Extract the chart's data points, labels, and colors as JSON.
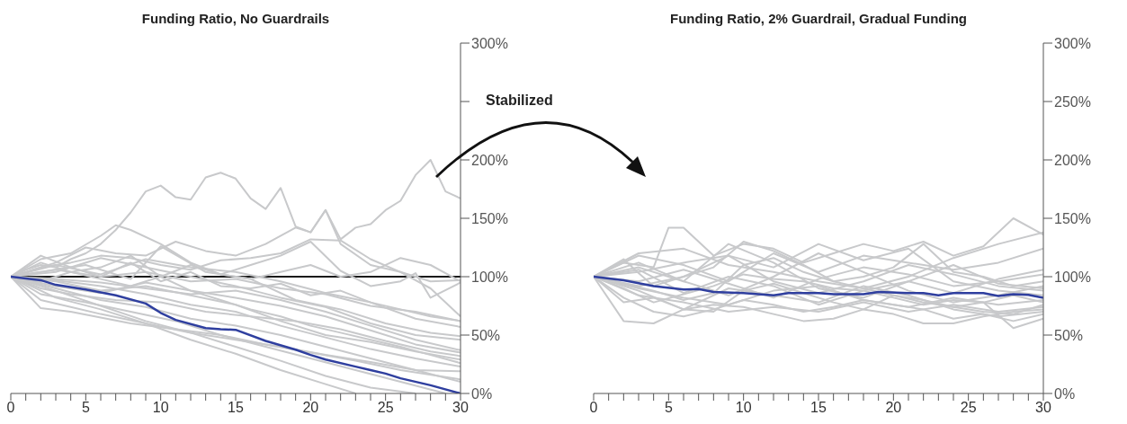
{
  "chart_data": [
    {
      "type": "line",
      "title": "Funding Ratio, No Guardrails",
      "xlim": [
        0,
        30
      ],
      "xticks": [
        0,
        {
          "value": 1,
          "label": null
        },
        {
          "value": 2,
          "label": null
        },
        {
          "value": 3,
          "label": null
        },
        {
          "value": 4,
          "label": null
        },
        5,
        {
          "value": 6,
          "label": null
        },
        {
          "value": 7,
          "label": null
        },
        {
          "value": 8,
          "label": null
        },
        {
          "value": 9,
          "label": null
        },
        10,
        {
          "value": 11,
          "label": null
        },
        {
          "value": 12,
          "label": null
        },
        {
          "value": 13,
          "label": null
        },
        {
          "value": 14,
          "label": null
        },
        15,
        {
          "value": 16,
          "label": null
        },
        {
          "value": 17,
          "label": null
        },
        {
          "value": 18,
          "label": null
        },
        {
          "value": 19,
          "label": null
        },
        20,
        {
          "value": 21,
          "label": null
        },
        {
          "value": 22,
          "label": null
        },
        {
          "value": 23,
          "label": null
        },
        {
          "value": 24,
          "label": null
        },
        25,
        {
          "value": 26,
          "label": null
        },
        {
          "value": 27,
          "label": null
        },
        {
          "value": 28,
          "label": null
        },
        {
          "value": 29,
          "label": null
        },
        30
      ],
      "ylim": [
        0,
        300
      ],
      "yticks": [
        {
          "value": 0,
          "label": "0%"
        },
        {
          "value": 50,
          "label": "50%"
        },
        {
          "value": 100,
          "label": "100%"
        },
        {
          "value": 150,
          "label": "150%"
        },
        {
          "value": 200,
          "label": "200%"
        },
        {
          "value": 250,
          "label": null
        },
        {
          "value": 300,
          "label": "300%"
        }
      ],
      "ref_lines": [
        {
          "axis": "y",
          "value": 100,
          "color": "#1a1a1a"
        }
      ],
      "annotations": [
        "Stabilized"
      ],
      "series": [
        {
          "color": "#c8c9cb",
          "x": [
            0,
            1,
            2,
            3,
            4,
            5,
            6,
            7,
            8,
            9,
            10,
            11,
            12,
            13,
            14,
            15,
            16,
            17,
            18,
            19,
            20,
            21,
            22,
            23,
            24,
            25,
            26,
            27,
            28,
            29,
            30
          ],
          "values": [
            100,
            106,
            110,
            108,
            115,
            120,
            128,
            140,
            155,
            173,
            178,
            168,
            166,
            185,
            189,
            184,
            167,
            158,
            176,
            143,
            138,
            157,
            132,
            142,
            145,
            157,
            165,
            187,
            200,
            173,
            167
          ]
        },
        {
          "color": "#c8c9cb",
          "x": [
            0,
            3,
            5,
            7,
            9,
            11,
            13,
            15,
            17,
            19,
            20,
            21,
            22,
            24,
            26,
            28,
            30
          ],
          "values": [
            100,
            112,
            125,
            120,
            118,
            130,
            122,
            118,
            128,
            142,
            138,
            157,
            128,
            110,
            104,
            96,
            97
          ]
        },
        {
          "color": "#c8c9cb",
          "x": [
            0,
            2,
            4,
            6,
            7,
            8,
            10,
            12,
            14,
            16,
            18,
            20,
            22,
            24,
            26,
            27,
            28,
            30
          ],
          "values": [
            100,
            115,
            120,
            135,
            144,
            140,
            128,
            112,
            102,
            110,
            118,
            130,
            105,
            92,
            96,
            103,
            82,
            95
          ]
        },
        {
          "color": "#c8c9cb",
          "x": [
            0,
            2,
            4,
            6,
            8,
            10,
            12,
            14,
            16,
            18,
            20,
            22,
            24,
            26,
            28,
            30
          ],
          "values": [
            100,
            108,
            112,
            118,
            116,
            110,
            106,
            114,
            116,
            120,
            132,
            131,
            115,
            104,
            90,
            66
          ]
        },
        {
          "color": "#c8c9cb",
          "x": [
            0,
            3,
            6,
            9,
            12,
            15,
            18,
            21,
            24,
            27,
            30
          ],
          "values": [
            100,
            106,
            100,
            104,
            96,
            98,
            90,
            85,
            75,
            70,
            62
          ]
        },
        {
          "color": "#c8c9cb",
          "x": [
            0,
            2,
            5,
            8,
            10,
            13,
            16,
            19,
            22,
            25,
            28,
            30
          ],
          "values": [
            100,
            104,
            110,
            98,
            126,
            104,
            98,
            80,
            72,
            60,
            52,
            49
          ]
        },
        {
          "color": "#c8c9cb",
          "x": [
            0,
            3,
            6,
            9,
            12,
            15,
            18,
            21,
            24,
            27,
            30
          ],
          "values": [
            100,
            98,
            95,
            90,
            85,
            88,
            80,
            70,
            58,
            46,
            37
          ]
        },
        {
          "color": "#c8c9cb",
          "x": [
            0,
            2,
            4,
            7,
            10,
            13,
            16,
            19,
            22,
            25,
            28,
            30
          ],
          "values": [
            100,
            90,
            85,
            80,
            78,
            70,
            66,
            62,
            55,
            45,
            36,
            32
          ]
        },
        {
          "color": "#c8c9cb",
          "x": [
            0,
            3,
            6,
            9,
            12,
            15,
            18,
            21,
            24,
            27,
            30
          ],
          "values": [
            100,
            96,
            88,
            92,
            84,
            76,
            62,
            50,
            44,
            36,
            29
          ]
        },
        {
          "color": "#c8c9cb",
          "x": [
            0,
            2,
            4,
            6,
            9,
            12,
            15,
            18,
            21,
            24,
            27,
            30
          ],
          "values": [
            100,
            80,
            74,
            68,
            60,
            52,
            46,
            40,
            33,
            27,
            20,
            19
          ]
        },
        {
          "color": "#c8c9cb",
          "x": [
            0,
            2,
            4,
            6,
            8,
            11,
            14,
            17,
            20,
            23,
            26,
            30
          ],
          "values": [
            100,
            73,
            70,
            65,
            60,
            55,
            50,
            42,
            35,
            28,
            20,
            12
          ]
        },
        {
          "color": "#c8c9cb",
          "x": [
            0,
            2,
            5,
            8,
            11,
            14,
            17,
            20,
            23,
            26,
            29
          ],
          "values": [
            100,
            85,
            78,
            70,
            62,
            50,
            40,
            30,
            20,
            10,
            0
          ]
        },
        {
          "color": "#c8c9cb",
          "x": [
            0,
            3,
            6,
            9,
            12,
            15,
            18,
            21,
            24,
            27
          ],
          "values": [
            100,
            88,
            75,
            62,
            52,
            40,
            28,
            15,
            5,
            0
          ]
        },
        {
          "color": "#c8c9cb",
          "x": [
            0,
            3,
            6,
            9,
            12,
            15,
            18,
            21,
            23
          ],
          "values": [
            100,
            82,
            72,
            60,
            46,
            34,
            20,
            8,
            0
          ]
        },
        {
          "color": "#c8c9cb",
          "x": [
            0,
            2,
            4,
            6,
            8,
            10,
            12,
            14,
            16,
            18,
            20,
            22,
            24,
            26,
            28,
            30
          ],
          "values": [
            100,
            112,
            104,
            108,
            118,
            100,
            110,
            102,
            98,
            104,
            110,
            100,
            104,
            116,
            110,
            96
          ]
        },
        {
          "color": "#c8c9cb",
          "x": [
            0,
            2,
            4,
            6,
            8,
            10,
            12,
            14,
            16,
            18,
            20,
            22,
            24,
            26,
            28,
            30
          ],
          "values": [
            100,
            118,
            108,
            100,
            112,
            96,
            104,
            92,
            90,
            94,
            84,
            88,
            78,
            72,
            66,
            62
          ]
        },
        {
          "color": "#c8c9cb",
          "x": [
            0,
            3,
            6,
            9,
            12,
            15,
            18,
            21,
            24,
            27,
            30
          ],
          "values": [
            100,
            110,
            102,
            115,
            108,
            104,
            96,
            86,
            78,
            64,
            57
          ]
        },
        {
          "color": "#c8c9cb",
          "x": [
            0,
            3,
            6,
            9,
            12,
            15,
            18,
            21,
            24,
            27,
            30
          ],
          "values": [
            100,
            92,
            86,
            95,
            88,
            82,
            75,
            66,
            54,
            42,
            35
          ]
        },
        {
          "color": "#c8c9cb",
          "x": [
            0,
            2,
            4,
            6,
            8,
            10,
            12,
            14,
            16,
            18,
            20,
            22,
            24,
            26,
            28,
            30
          ],
          "values": [
            100,
            96,
            104,
            98,
            92,
            100,
            88,
            80,
            72,
            66,
            58,
            52,
            46,
            40,
            33,
            26
          ]
        },
        {
          "color": "#c8c9cb",
          "x": [
            0,
            3,
            6,
            9,
            12,
            15,
            18,
            21,
            24,
            27,
            30
          ],
          "values": [
            100,
            90,
            80,
            74,
            64,
            58,
            50,
            40,
            30,
            20,
            10
          ]
        },
        {
          "color": "#c8c9cb",
          "x": [
            0,
            3,
            6,
            9,
            12,
            15,
            18,
            21,
            24,
            27,
            30
          ],
          "values": [
            100,
            104,
            116,
            108,
            100,
            92,
            82,
            74,
            60,
            50,
            46
          ]
        },
        {
          "color": "#c8c9cb",
          "x": [
            0,
            3,
            6,
            9,
            12,
            15,
            18,
            21,
            24,
            27,
            30
          ],
          "values": [
            100,
            97,
            92,
            85,
            76,
            70,
            58,
            48,
            38,
            30,
            23
          ]
        },
        {
          "color": "#2f3f9f",
          "x": [
            0,
            2,
            3,
            5,
            7,
            9,
            10,
            11,
            13,
            14,
            15,
            17,
            19,
            20,
            21,
            23,
            24,
            25,
            26,
            28,
            30
          ],
          "values": [
            100,
            97,
            93,
            89,
            84,
            77,
            69,
            63,
            56,
            55,
            54.5,
            45,
            37.5,
            33,
            29,
            23,
            20,
            17,
            13,
            7,
            0
          ]
        }
      ]
    },
    {
      "type": "line",
      "title": "Funding Ratio, 2% Guardrail, Gradual Funding",
      "xlim": [
        0,
        30
      ],
      "xticks": [
        0,
        {
          "value": 1,
          "label": null
        },
        {
          "value": 2,
          "label": null
        },
        {
          "value": 3,
          "label": null
        },
        {
          "value": 4,
          "label": null
        },
        5,
        {
          "value": 6,
          "label": null
        },
        {
          "value": 7,
          "label": null
        },
        {
          "value": 8,
          "label": null
        },
        {
          "value": 9,
          "label": null
        },
        10,
        {
          "value": 11,
          "label": null
        },
        {
          "value": 12,
          "label": null
        },
        {
          "value": 13,
          "label": null
        },
        {
          "value": 14,
          "label": null
        },
        15,
        {
          "value": 16,
          "label": null
        },
        {
          "value": 17,
          "label": null
        },
        {
          "value": 18,
          "label": null
        },
        {
          "value": 19,
          "label": null
        },
        20,
        {
          "value": 21,
          "label": null
        },
        {
          "value": 22,
          "label": null
        },
        {
          "value": 23,
          "label": null
        },
        {
          "value": 24,
          "label": null
        },
        25,
        {
          "value": 26,
          "label": null
        },
        {
          "value": 27,
          "label": null
        },
        {
          "value": 28,
          "label": null
        },
        {
          "value": 29,
          "label": null
        },
        30
      ],
      "ylim": [
        0,
        300
      ],
      "yticks": [
        {
          "value": 0,
          "label": "0%"
        },
        {
          "value": 50,
          "label": "50%"
        },
        {
          "value": 100,
          "label": "100%"
        },
        {
          "value": 150,
          "label": "150%"
        },
        {
          "value": 200,
          "label": "200%"
        },
        {
          "value": 250,
          "label": "250%"
        },
        {
          "value": 300,
          "label": "300%"
        }
      ],
      "series": [
        {
          "color": "#c8c9cb",
          "x": [
            0,
            2,
            4,
            5,
            6,
            8,
            10,
            12,
            14,
            16,
            18,
            20,
            22,
            24,
            26,
            28,
            30
          ],
          "values": [
            100,
            112,
            108,
            142,
            142,
            118,
            128,
            124,
            112,
            120,
            128,
            122,
            130,
            118,
            126,
            150,
            136
          ]
        },
        {
          "color": "#c8c9cb",
          "x": [
            0,
            2,
            4,
            6,
            8,
            10,
            12,
            14,
            16,
            18,
            20,
            22,
            24,
            26,
            28,
            30
          ],
          "values": [
            100,
            90,
            78,
            85,
            92,
            102,
            98,
            96,
            90,
            88,
            82,
            76,
            80,
            78,
            56,
            64
          ]
        },
        {
          "color": "#c8c9cb",
          "x": [
            0,
            2,
            3,
            4,
            6,
            8,
            10,
            12,
            14,
            16,
            18,
            20,
            22,
            24,
            26,
            28,
            30
          ],
          "values": [
            100,
            115,
            103,
            92,
            100,
            108,
            130,
            122,
            110,
            96,
            100,
            108,
            128,
            104,
            100,
            92,
            96
          ]
        },
        {
          "color": "#c8c9cb",
          "x": [
            0,
            2,
            4,
            6,
            8,
            10,
            12,
            14,
            16,
            18,
            20,
            22,
            24,
            26,
            28,
            30
          ],
          "values": [
            100,
            62,
            60,
            72,
            76,
            74,
            68,
            62,
            64,
            72,
            68,
            60,
            60,
            66,
            70,
            72
          ]
        },
        {
          "color": "#c8c9cb",
          "x": [
            0,
            2,
            4,
            6,
            8,
            10,
            12,
            14,
            16,
            18,
            20,
            22,
            24,
            26,
            28,
            30
          ],
          "values": [
            100,
            94,
            88,
            80,
            86,
            110,
            116,
            104,
            96,
            90,
            84,
            78,
            74,
            70,
            68,
            76
          ]
        },
        {
          "color": "#c8c9cb",
          "x": [
            0,
            3,
            6,
            9,
            12,
            15,
            18,
            21,
            24,
            27,
            30
          ],
          "values": [
            100,
            120,
            124,
            110,
            104,
            96,
            90,
            100,
            116,
            128,
            138
          ]
        },
        {
          "color": "#c8c9cb",
          "x": [
            0,
            3,
            6,
            9,
            12,
            15,
            18,
            21,
            24,
            27,
            30
          ],
          "values": [
            100,
            88,
            72,
            90,
            84,
            78,
            92,
            84,
            72,
            66,
            70
          ]
        },
        {
          "color": "#c8c9cb",
          "x": [
            0,
            3,
            6,
            9,
            12,
            15,
            18,
            21,
            24,
            27,
            30
          ],
          "values": [
            100,
            108,
            96,
            128,
            112,
            90,
            82,
            96,
            110,
            94,
            90
          ]
        },
        {
          "color": "#c8c9cb",
          "x": [
            0,
            2,
            4,
            6,
            8,
            10,
            12,
            14,
            16,
            18,
            20,
            22,
            24,
            26,
            28,
            30
          ],
          "values": [
            100,
            82,
            70,
            66,
            72,
            80,
            76,
            70,
            74,
            80,
            76,
            72,
            64,
            68,
            62,
            68
          ]
        },
        {
          "color": "#c8c9cb",
          "x": [
            0,
            3,
            6,
            9,
            12,
            15,
            18,
            21,
            24,
            27,
            30
          ],
          "values": [
            100,
            104,
            112,
            118,
            96,
            86,
            96,
            110,
            102,
            92,
            88
          ]
        },
        {
          "color": "#c8c9cb",
          "x": [
            0,
            3,
            6,
            9,
            12,
            15,
            18,
            21,
            24,
            27,
            30
          ],
          "values": [
            100,
            96,
            106,
            94,
            82,
            98,
            108,
            102,
            92,
            96,
            102
          ]
        },
        {
          "color": "#c8c9cb",
          "x": [
            0,
            3,
            6,
            9,
            12,
            15,
            18,
            21,
            24,
            27,
            30
          ],
          "values": [
            100,
            90,
            82,
            76,
            88,
            92,
            80,
            74,
            82,
            76,
            80
          ]
        },
        {
          "color": "#c8c9cb",
          "x": [
            0,
            3,
            6,
            9,
            12,
            15,
            18,
            21,
            24,
            27,
            30
          ],
          "values": [
            100,
            112,
            96,
            84,
            100,
            120,
            104,
            88,
            78,
            84,
            92
          ]
        },
        {
          "color": "#c8c9cb",
          "x": [
            0,
            3,
            6,
            9,
            12,
            15,
            18,
            21,
            24,
            27,
            30
          ],
          "values": [
            100,
            92,
            100,
            118,
            108,
            128,
            114,
            124,
            96,
            88,
            84
          ]
        },
        {
          "color": "#c8c9cb",
          "x": [
            0,
            3,
            6,
            9,
            12,
            15,
            18,
            21,
            24,
            27,
            30
          ],
          "values": [
            100,
            84,
            78,
            70,
            74,
            70,
            78,
            70,
            76,
            70,
            74
          ]
        },
        {
          "color": "#c8c9cb",
          "x": [
            0,
            3,
            6,
            9,
            12,
            15,
            18,
            21,
            24,
            27,
            30
          ],
          "values": [
            100,
            106,
            86,
            100,
            92,
            76,
            88,
            96,
            86,
            98,
            106
          ]
        },
        {
          "color": "#c8c9cb",
          "x": [
            0,
            2,
            4,
            6,
            8,
            10,
            12,
            14,
            16,
            18,
            20,
            22,
            24,
            26,
            28,
            30
          ],
          "values": [
            100,
            78,
            82,
            72,
            70,
            88,
            94,
            86,
            78,
            72,
            84,
            80,
            74,
            78,
            84,
            78
          ]
        },
        {
          "color": "#c8c9cb",
          "x": [
            0,
            3,
            6,
            9,
            12,
            15,
            18,
            21,
            24,
            27,
            30
          ],
          "values": [
            100,
            118,
            110,
            96,
            120,
            104,
            118,
            112,
            106,
            112,
            124
          ]
        },
        {
          "color": "#2f3f9f",
          "x": [
            0,
            2,
            4,
            6,
            7,
            8,
            10,
            12,
            13,
            15,
            16,
            18,
            19,
            21,
            22,
            23,
            24,
            26,
            27,
            28,
            29,
            30
          ],
          "values": [
            100,
            97,
            92,
            89,
            89.5,
            87,
            86,
            84,
            86,
            86,
            85,
            85,
            87,
            86,
            86,
            84,
            86,
            86,
            83.5,
            85,
            84.5,
            82
          ]
        }
      ]
    }
  ]
}
